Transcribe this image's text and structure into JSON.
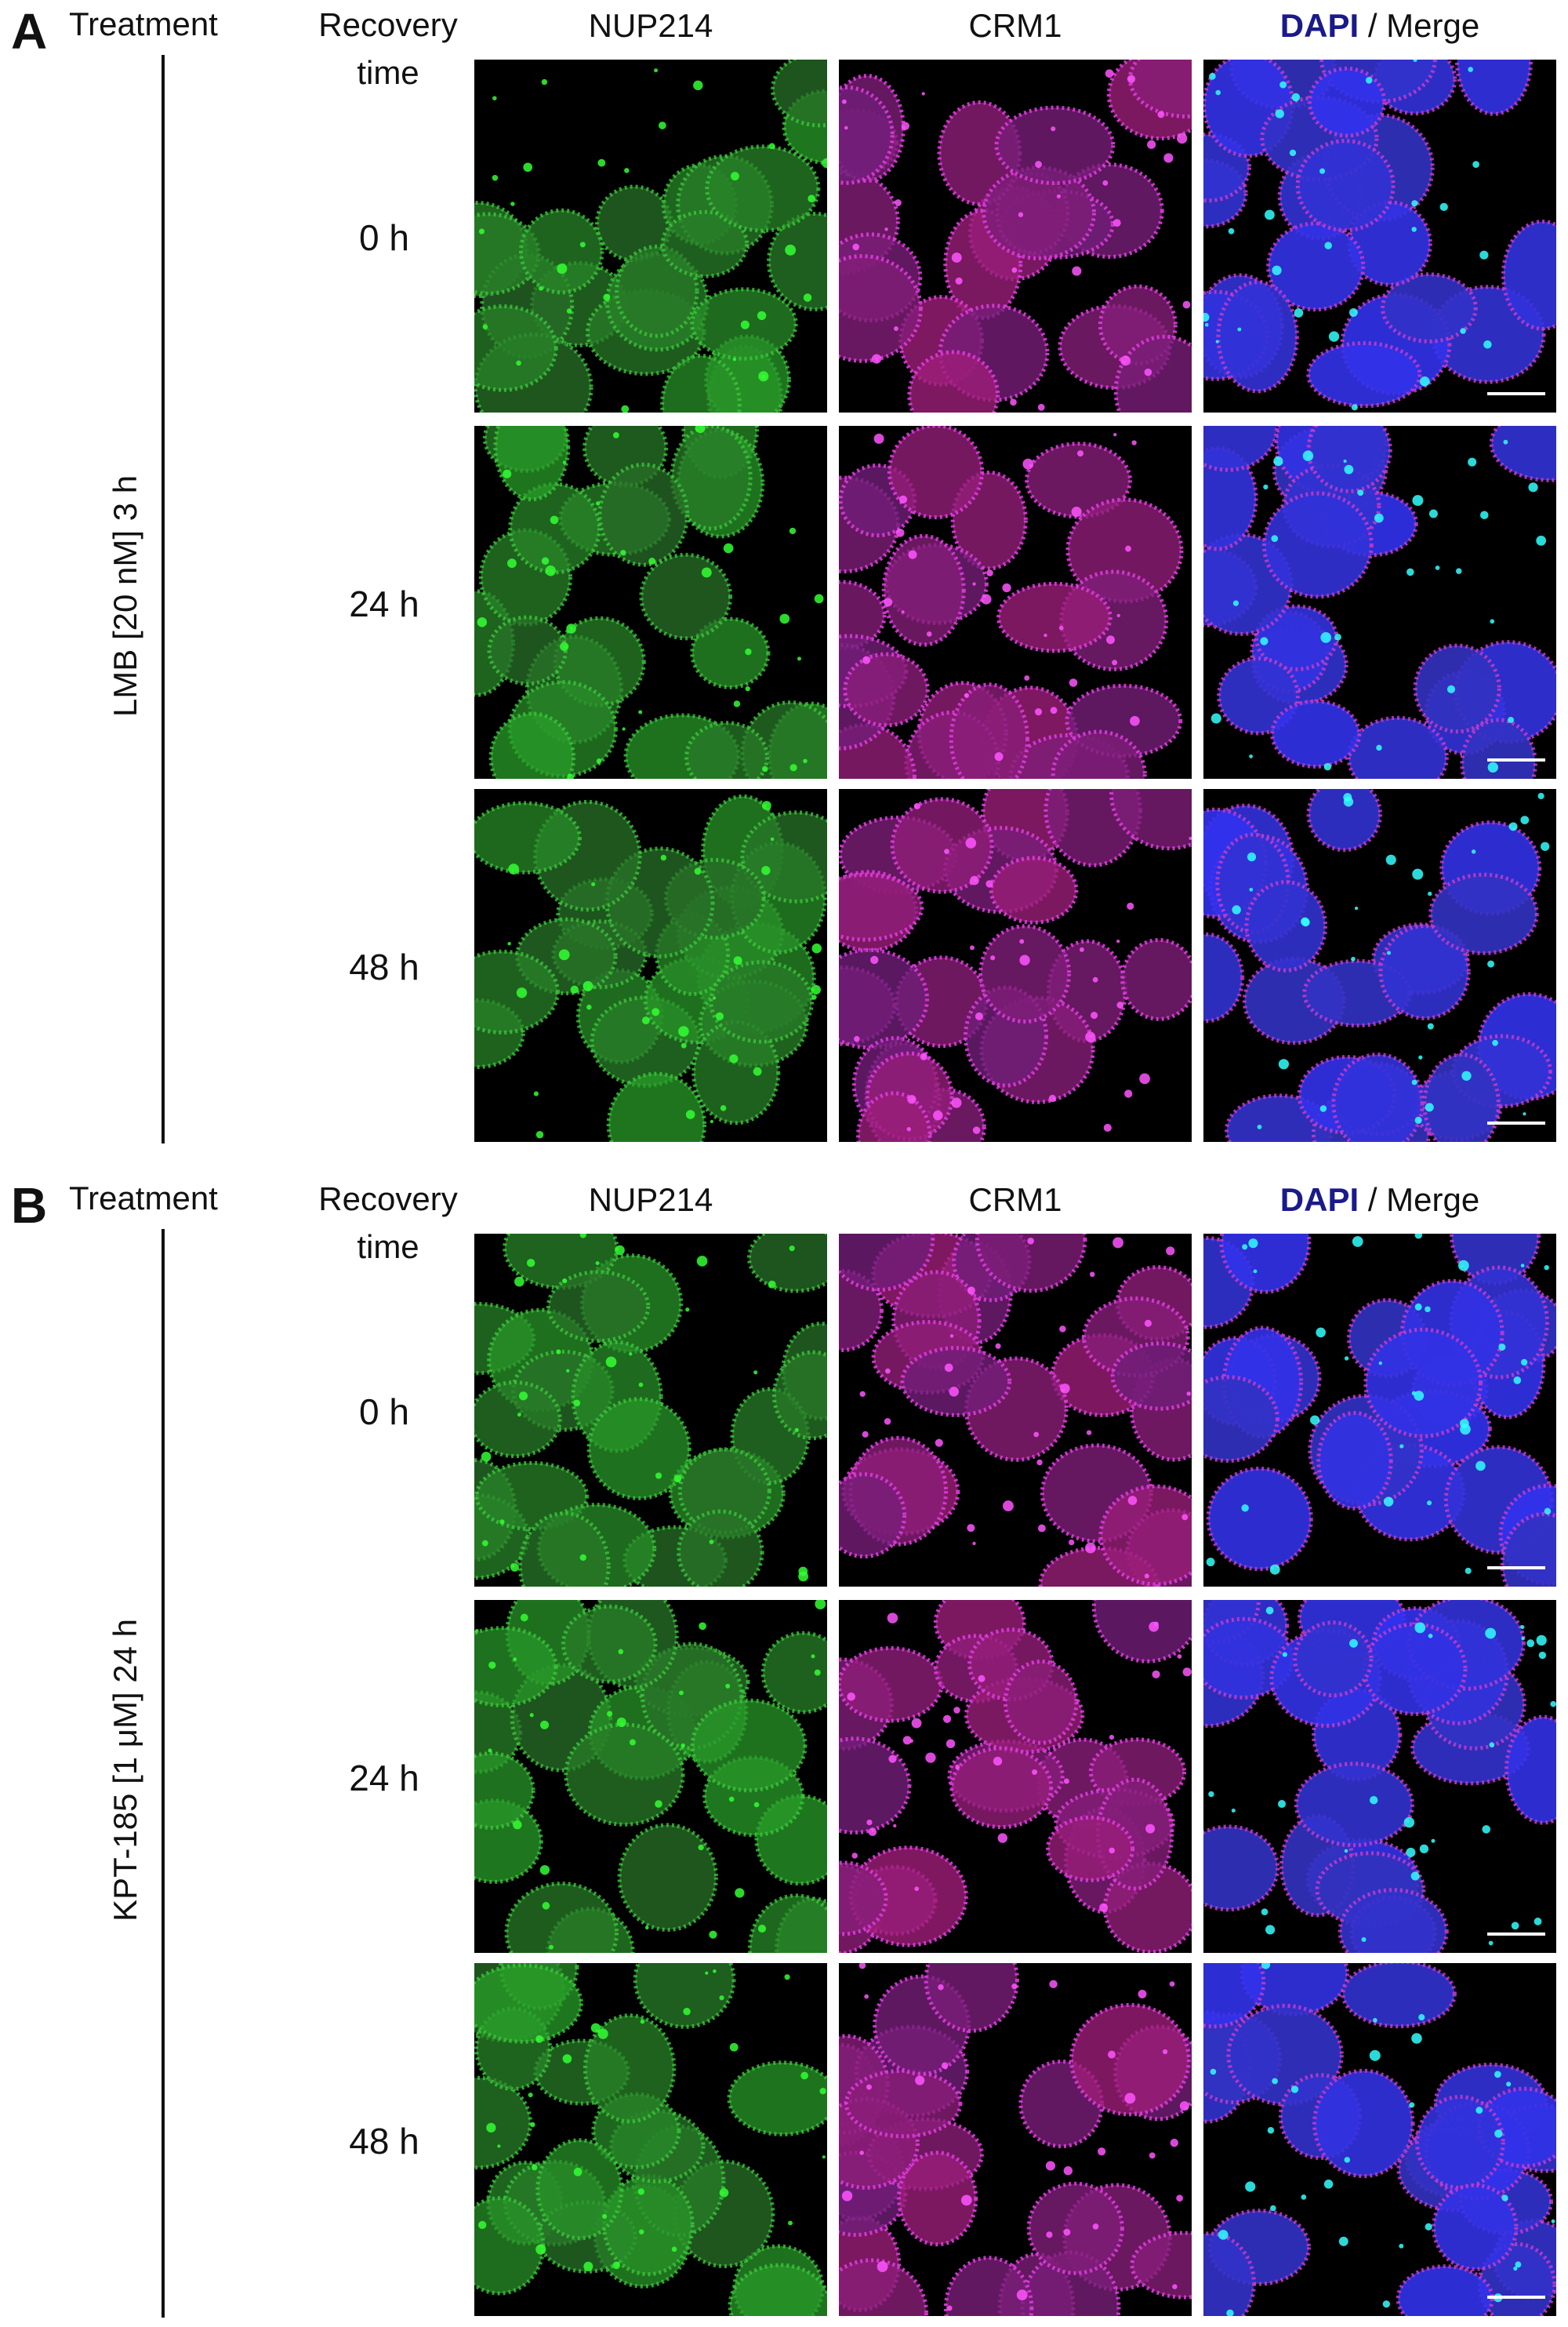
{
  "panels": [
    {
      "letter": "A",
      "treatment_header": "Treatment",
      "recovery_header": "Recovery time",
      "columns": [
        "NUP214",
        "CRM1"
      ],
      "merge_header": {
        "dapi": "DAPI",
        "rest": "/ Merge"
      },
      "treatment": "LMB [20 nM] 3 h",
      "rows": [
        "0 h",
        "24 h",
        "48 h"
      ]
    },
    {
      "letter": "B",
      "treatment_header": "Treatment",
      "recovery_header": "Recovery time",
      "columns": [
        "NUP214",
        "CRM1"
      ],
      "merge_header": {
        "dapi": "DAPI",
        "rest": "/ Merge"
      },
      "treatment": "KPT-185 [1 μM] 24 h",
      "rows": [
        "0 h",
        "24 h",
        "48 h"
      ]
    }
  ]
}
